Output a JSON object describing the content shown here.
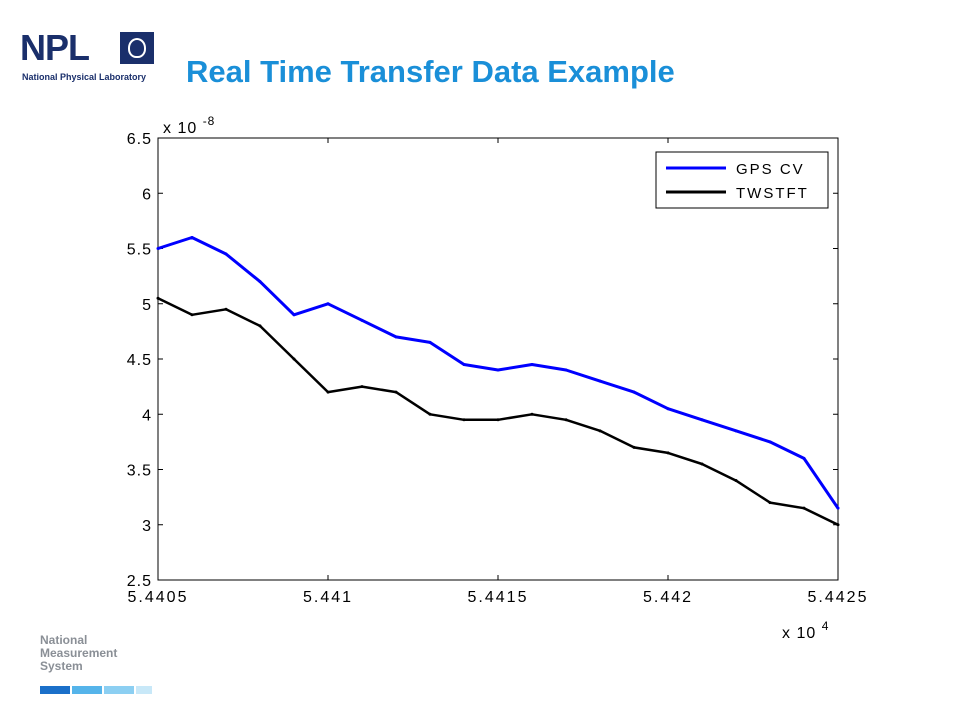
{
  "logo": {
    "mark": "NPL",
    "subtitle": "National Physical Laboratory",
    "seal_icon": "npl-seal-icon"
  },
  "slide": {
    "title": "Real Time Transfer Data Example"
  },
  "footer": {
    "lines": [
      "National",
      "Measurement",
      "System"
    ]
  },
  "chart_data": {
    "type": "line",
    "title": "",
    "xlabel": "",
    "ylabel": "",
    "x_multiplier": "x 10^4",
    "y_multiplier": "x 10^-8",
    "xlim": [
      5.44405,
      5.44425
    ],
    "ylim": [
      2.5,
      6.5
    ],
    "xticks": [
      "5.4405",
      "5.441",
      "5.4415",
      "5.442",
      "5.4425"
    ],
    "yticks": [
      "2.5",
      "3",
      "3.5",
      "4",
      "4.5",
      "5",
      "5.5",
      "6",
      "6.5"
    ],
    "legend_position": "top-right",
    "grid": false,
    "series": [
      {
        "name": "GPS CV",
        "color": "#0000ff",
        "x": [
          5.44405,
          5.44406,
          5.44407,
          5.44408,
          5.44409,
          5.4441,
          5.44411,
          5.44412,
          5.44413,
          5.44414,
          5.44415,
          5.44416,
          5.44417,
          5.44418,
          5.44419,
          5.4442,
          5.44421,
          5.44422,
          5.44423,
          5.44424,
          5.44425
        ],
        "values": [
          5.5,
          5.6,
          5.45,
          5.2,
          4.9,
          5.0,
          4.85,
          4.7,
          4.65,
          4.45,
          4.4,
          4.45,
          4.4,
          4.3,
          4.2,
          4.05,
          3.95,
          3.85,
          3.75,
          3.6,
          3.15
        ]
      },
      {
        "name": "TWSTFT",
        "color": "#000000",
        "x": [
          5.44405,
          5.44406,
          5.44407,
          5.44408,
          5.44409,
          5.4441,
          5.44411,
          5.44412,
          5.44413,
          5.44414,
          5.44415,
          5.44416,
          5.44417,
          5.44418,
          5.44419,
          5.4442,
          5.44421,
          5.44422,
          5.44423,
          5.44424,
          5.44425
        ],
        "values": [
          5.05,
          4.9,
          4.95,
          4.8,
          4.5,
          4.2,
          4.25,
          4.2,
          4.0,
          3.95,
          3.95,
          4.0,
          3.95,
          3.85,
          3.7,
          3.65,
          3.55,
          3.4,
          3.2,
          3.15,
          3.0
        ]
      }
    ]
  }
}
